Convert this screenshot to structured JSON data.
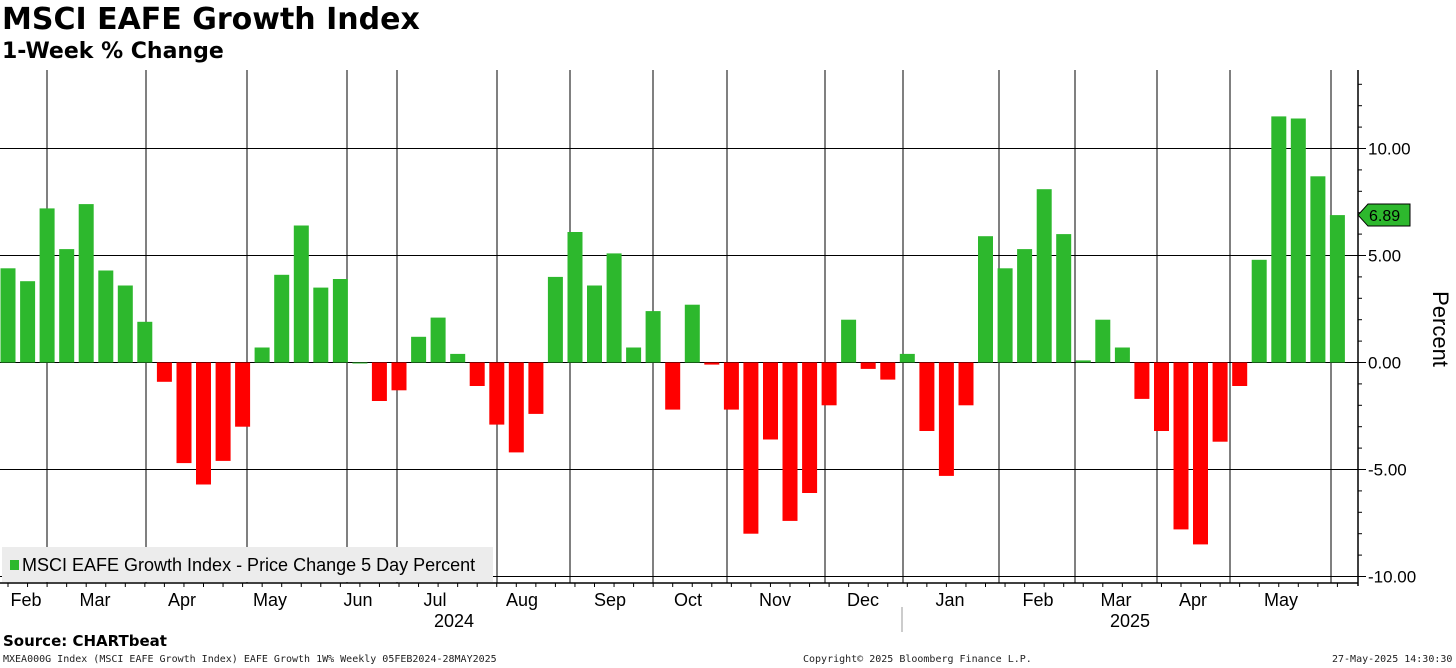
{
  "header": {
    "title": "MSCI EAFE Growth Index",
    "subtitle": "1-Week % Change"
  },
  "chart_data": {
    "type": "bar",
    "ylabel": "Percent",
    "ylim": [
      -10.5,
      13.5
    ],
    "yticks": [
      10.0,
      5.0,
      0.0,
      -5.0,
      -10.0
    ],
    "ytick_labels": [
      "10.00",
      "5.00",
      "0.00",
      "-5.00",
      "-10.00"
    ],
    "grid": true,
    "colors": {
      "positive": "#2db82d",
      "negative": "#ff0000",
      "grid": "#000000"
    },
    "legend": {
      "position": "bottom-left",
      "label": "MSCI EAFE Growth Index - Price Change 5 Day Percent"
    },
    "last_value": {
      "value": 6.89,
      "label": "6.89"
    },
    "x": [
      "2024-02-05",
      "2024-02-12",
      "2024-02-19",
      "2024-02-26",
      "2024-03-04",
      "2024-03-11",
      "2024-03-18",
      "2024-03-25",
      "2024-04-01",
      "2024-04-08",
      "2024-04-15",
      "2024-04-22",
      "2024-04-29",
      "2024-05-06",
      "2024-05-13",
      "2024-05-20",
      "2024-05-27",
      "2024-06-03",
      "2024-06-10",
      "2024-06-17",
      "2024-06-24",
      "2024-07-01",
      "2024-07-08",
      "2024-07-15",
      "2024-07-22",
      "2024-07-29",
      "2024-08-05",
      "2024-08-12",
      "2024-08-19",
      "2024-08-26",
      "2024-09-02",
      "2024-09-09",
      "2024-09-16",
      "2024-09-23",
      "2024-09-30",
      "2024-10-07",
      "2024-10-14",
      "2024-10-21",
      "2024-10-28",
      "2024-11-04",
      "2024-11-11",
      "2024-11-18",
      "2024-11-25",
      "2024-12-02",
      "2024-12-09",
      "2024-12-16",
      "2024-12-23",
      "2024-12-30",
      "2025-01-06",
      "2025-01-13",
      "2025-01-20",
      "2025-01-27",
      "2025-02-03",
      "2025-02-10",
      "2025-02-17",
      "2025-02-24",
      "2025-03-03",
      "2025-03-10",
      "2025-03-17",
      "2025-03-24",
      "2025-03-31",
      "2025-04-07",
      "2025-04-14",
      "2025-04-21",
      "2025-04-28",
      "2025-05-05",
      "2025-05-12",
      "2025-05-19",
      "2025-05-26"
    ],
    "values": [
      4.4,
      3.8,
      7.2,
      5.3,
      7.4,
      4.3,
      3.6,
      1.9,
      -0.9,
      -4.7,
      -5.7,
      -4.6,
      -3.0,
      0.7,
      4.1,
      6.4,
      3.5,
      3.9,
      0.0,
      -1.8,
      -1.3,
      1.2,
      2.1,
      0.4,
      -1.1,
      -2.9,
      -4.2,
      -2.4,
      4.0,
      6.1,
      3.6,
      5.1,
      0.7,
      2.4,
      -2.2,
      2.7,
      -0.1,
      -2.2,
      -8.0,
      -3.6,
      -7.4,
      -6.1,
      -2.0,
      2.0,
      -0.3,
      -0.8,
      0.4,
      -3.2,
      -5.3,
      -2.0,
      5.9,
      4.4,
      5.3,
      8.1,
      6.0,
      0.1,
      2.0,
      0.7,
      -1.7,
      -3.2,
      -7.8,
      -8.5,
      -3.7,
      -1.1,
      4.8,
      11.5,
      11.4,
      8.7,
      6.89
    ],
    "x_month_labels": [
      "Feb",
      "Mar",
      "Apr",
      "May",
      "Jun",
      "Jul",
      "Aug",
      "Sep",
      "Oct",
      "Nov",
      "Dec",
      "Jan",
      "Feb",
      "Mar",
      "Apr",
      "May"
    ],
    "x_year_labels": [
      "2024",
      "2025"
    ]
  },
  "footer": {
    "source": "Source: CHARTbeat",
    "left": "MXEA000G Index (MSCI EAFE Growth Index) EAFE Growth 1W% Weekly 05FEB2024-28MAY2025",
    "center": "Copyright© 2025 Bloomberg Finance L.P.",
    "right": "27-May-2025 14:30:30"
  }
}
